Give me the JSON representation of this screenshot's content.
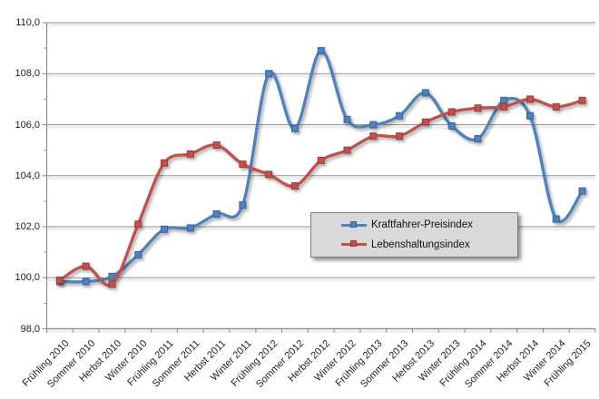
{
  "chart_data": {
    "type": "line",
    "title": "",
    "categories": [
      "Frühling 2010",
      "Sommer 2010",
      "Herbst 2010",
      "Winter 2010",
      "Frühling 2011",
      "Sommer 2011",
      "Herbst 2011",
      "Winter 2011",
      "Frühling 2012",
      "Sommer 2012",
      "Herbst 2012",
      "Winter 2012",
      "Frühling 2013",
      "Sommer 2013",
      "Herbst 2013",
      "Winter 2013",
      "Frühling 2014",
      "Sommer 2014",
      "Herbst 2014",
      "Winter 2014",
      "Frühling 2015"
    ],
    "series": [
      {
        "name": "Kraftfahrer-Preisindex",
        "color": "#4f81bd",
        "marker_border": "#38629b",
        "values": [
          99.85,
          99.85,
          100.05,
          100.9,
          101.9,
          101.95,
          102.5,
          102.85,
          108.0,
          105.85,
          108.9,
          106.2,
          106.0,
          106.35,
          107.25,
          105.95,
          105.45,
          106.95,
          106.35,
          102.3,
          103.4
        ]
      },
      {
        "name": "Lebenshaltungsindex",
        "color": "#c0504d",
        "marker_border": "#9c3a38",
        "values": [
          99.9,
          100.45,
          99.75,
          102.1,
          104.5,
          104.85,
          105.2,
          104.45,
          104.05,
          103.6,
          104.6,
          105.0,
          105.55,
          105.55,
          106.1,
          106.5,
          106.65,
          106.7,
          107.0,
          106.7,
          106.95
        ]
      }
    ],
    "xlabel": "",
    "ylabel": "",
    "ylim": [
      98,
      110
    ],
    "ytick_step": 2,
    "ytick_labels": [
      "98,0",
      "100,0",
      "102,0",
      "104,0",
      "106,0",
      "108,0",
      "110,0"
    ],
    "grid": true,
    "smooth_lines": true,
    "legend_position": "inside-center-right",
    "x_label_rotation_deg": -45
  },
  "style": {
    "gridline_color": "#929292",
    "gridline_shadow_color": "#efefef",
    "axis_color": "#8c8c8c",
    "text_color": "#1f1f1f",
    "legend_bg": "#d9d9d9",
    "legend_border": "#7f7f7f",
    "background": "#ffffff"
  }
}
